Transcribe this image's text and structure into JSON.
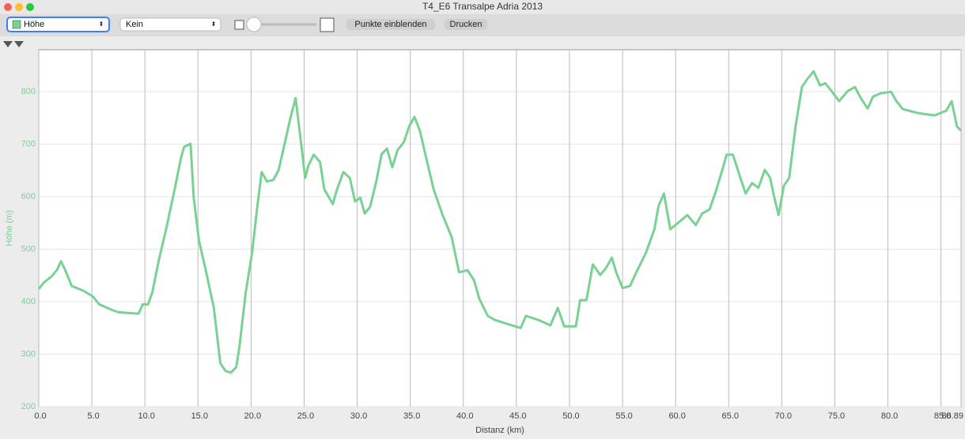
{
  "window": {
    "title": "T4_E6 Transalpe Adria 2013"
  },
  "toolbar": {
    "overlay_select": "Kein",
    "buttons": [
      "Punkte einblenden",
      "Drucken"
    ]
  },
  "chart_data": {
    "type": "line",
    "y_label": "Höhe (m)",
    "x_label": "Distanz (km)",
    "x": [
      0,
      0.45,
      1.2,
      1.7,
      2.1,
      2.5,
      3.1,
      4.2,
      5.1,
      5.7,
      6.8,
      7.5,
      9.4,
      9.8,
      10.3,
      10.7,
      11.3,
      12.0,
      12.8,
      13.4,
      13.7,
      14.3,
      14.6,
      15.1,
      15.7,
      16.5,
      17.1,
      17.6,
      18.1,
      18.6,
      18.9,
      19.5,
      20.1,
      20.6,
      21.0,
      21.5,
      22.1,
      22.6,
      23.2,
      23.7,
      24.2,
      24.7,
      25.1,
      25.4,
      25.9,
      26.5,
      26.9,
      27.7,
      28.1,
      28.7,
      29.3,
      29.8,
      30.3,
      30.7,
      31.2,
      31.8,
      32.3,
      32.8,
      33.3,
      33.8,
      34.4,
      34.9,
      35.4,
      35.9,
      36.5,
      37.2,
      38.0,
      38.9,
      39.6,
      40.4,
      41.0,
      41.5,
      42.3,
      43.0,
      44.1,
      45.4,
      45.9,
      47.1,
      48.2,
      48.9,
      49.5,
      50.6,
      51.0,
      51.6,
      52.2,
      52.9,
      53.4,
      54.0,
      54.4,
      55.0,
      55.7,
      56.3,
      57.2,
      58.0,
      58.4,
      58.9,
      59.5,
      60.4,
      61.1,
      61.9,
      62.5,
      63.2,
      63.8,
      64.4,
      64.8,
      65.4,
      66.1,
      66.6,
      67.2,
      67.8,
      68.4,
      68.9,
      69.3,
      69.7,
      70.2,
      70.7,
      71.3,
      71.9,
      72.4,
      73.0,
      73.6,
      74.1,
      74.7,
      75.4,
      76.2,
      76.9,
      77.5,
      78.1,
      78.6,
      79.3,
      80.3,
      80.8,
      81.4,
      82.9,
      84.4,
      85.5,
      86.0,
      86.5,
      86.89
    ],
    "series": [
      {
        "name": "Höhe",
        "color": "#79d194",
        "values": [
          424,
          436,
          448,
          460,
          477,
          460,
          430,
          421,
          410,
          395,
          385,
          380,
          377,
          395,
          395,
          418,
          478,
          538,
          614,
          674,
          695,
          701,
          598,
          516,
          463,
          388,
          283,
          268,
          265,
          275,
          313,
          418,
          493,
          583,
          647,
          629,
          632,
          651,
          704,
          749,
          788,
          704,
          636,
          659,
          680,
          666,
          614,
          586,
          614,
          647,
          636,
          591,
          598,
          568,
          580,
          629,
          681,
          692,
          656,
          689,
          704,
          734,
          752,
          726,
          674,
          614,
          568,
          523,
          456,
          460,
          441,
          406,
          373,
          365,
          358,
          350,
          373,
          365,
          355,
          388,
          353,
          353,
          403,
          403,
          471,
          451,
          463,
          484,
          456,
          426,
          430,
          456,
          493,
          538,
          583,
          606,
          538,
          553,
          565,
          546,
          568,
          576,
          611,
          651,
          680,
          680,
          636,
          606,
          626,
          617,
          651,
          636,
          598,
          565,
          621,
          636,
          734,
          809,
          824,
          839,
          812,
          816,
          801,
          782,
          801,
          809,
          786,
          768,
          791,
          797,
          800,
          782,
          767,
          759,
          755,
          764,
          782,
          734,
          726
        ]
      }
    ],
    "xlim": [
      0,
      86.89
    ],
    "ylim": [
      200,
      880
    ],
    "xticks": [
      {
        "value": 0,
        "label": "0.0"
      },
      {
        "value": 5,
        "label": "5.0"
      },
      {
        "value": 10,
        "label": "10.0"
      },
      {
        "value": 15,
        "label": "15.0"
      },
      {
        "value": 20,
        "label": "20.0"
      },
      {
        "value": 25,
        "label": "25.0"
      },
      {
        "value": 30,
        "label": "30.0"
      },
      {
        "value": 35,
        "label": "35.0"
      },
      {
        "value": 40,
        "label": "40.0"
      },
      {
        "value": 45,
        "label": "45.0"
      },
      {
        "value": 50,
        "label": "50.0"
      },
      {
        "value": 55,
        "label": "55.0"
      },
      {
        "value": 60,
        "label": "60.0"
      },
      {
        "value": 65,
        "label": "65.0"
      },
      {
        "value": 70,
        "label": "70.0"
      },
      {
        "value": 75,
        "label": "75.0"
      },
      {
        "value": 80,
        "label": "80.0"
      },
      {
        "value": 85,
        "label": "85.0"
      },
      86.89
    ],
    "yticks": [
      200,
      300,
      400,
      500,
      600,
      700,
      800
    ],
    "grid": true
  }
}
